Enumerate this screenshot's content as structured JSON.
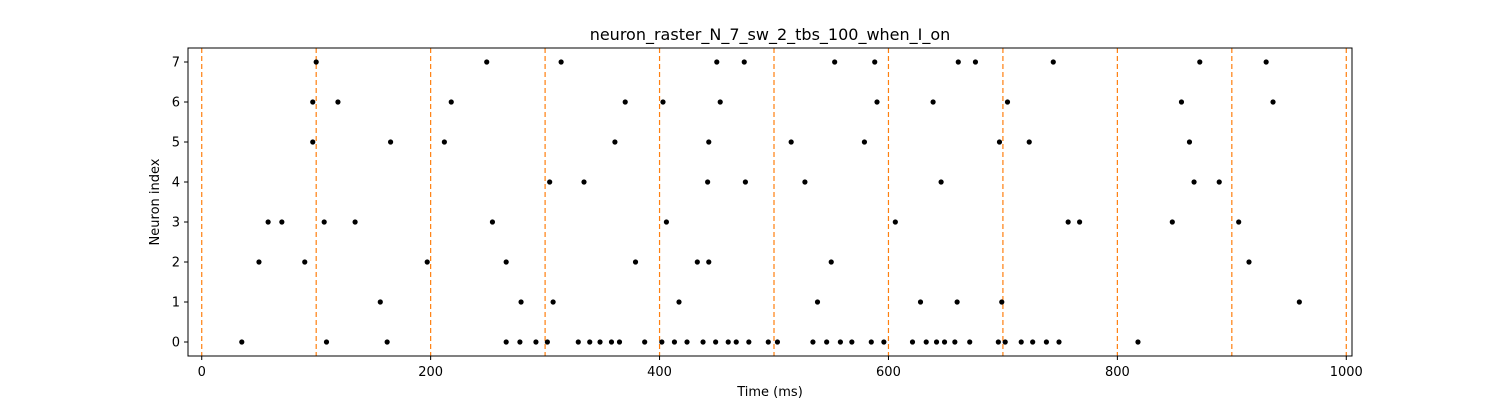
{
  "chart_data": {
    "type": "scatter",
    "title": "neuron_raster_N_7_sw_2_tbs_100_when_I_on",
    "xlabel": "Time (ms)",
    "ylabel": "Neuron index",
    "xlim": [
      -12,
      1005
    ],
    "ylim": [
      -0.35,
      7.35
    ],
    "xticks": [
      0,
      200,
      400,
      600,
      800,
      1000
    ],
    "yticks": [
      0,
      1,
      2,
      3,
      4,
      5,
      6,
      7
    ],
    "grid": false,
    "point_color": "#000000",
    "vline_color": "#ff7f0e",
    "vlines": [
      0,
      100,
      200,
      300,
      400,
      500,
      600,
      700,
      800,
      900,
      1000
    ],
    "spikes": [
      [
        35,
        0
      ],
      [
        50,
        2
      ],
      [
        58,
        3
      ],
      [
        70,
        3
      ],
      [
        90,
        2
      ],
      [
        97,
        5
      ],
      [
        97,
        6
      ],
      [
        100,
        7
      ],
      [
        107,
        3
      ],
      [
        109,
        0
      ],
      [
        119,
        6
      ],
      [
        134,
        3
      ],
      [
        156,
        1
      ],
      [
        162,
        0
      ],
      [
        165,
        5
      ],
      [
        197,
        2
      ],
      [
        212,
        5
      ],
      [
        218,
        6
      ],
      [
        249,
        7
      ],
      [
        254,
        3
      ],
      [
        266,
        2
      ],
      [
        266,
        0
      ],
      [
        278,
        0
      ],
      [
        279,
        1
      ],
      [
        292,
        0
      ],
      [
        302,
        0
      ],
      [
        304,
        4
      ],
      [
        307,
        1
      ],
      [
        314,
        7
      ],
      [
        329,
        0
      ],
      [
        334,
        4
      ],
      [
        339,
        0
      ],
      [
        348,
        0
      ],
      [
        358,
        0
      ],
      [
        361,
        5
      ],
      [
        365,
        0
      ],
      [
        370,
        6
      ],
      [
        379,
        2
      ],
      [
        387,
        0
      ],
      [
        402,
        0
      ],
      [
        403,
        6
      ],
      [
        406,
        3
      ],
      [
        413,
        0
      ],
      [
        417,
        1
      ],
      [
        424,
        0
      ],
      [
        433,
        2
      ],
      [
        438,
        0
      ],
      [
        442,
        4
      ],
      [
        443,
        5
      ],
      [
        443,
        2
      ],
      [
        449,
        0
      ],
      [
        450,
        7
      ],
      [
        453,
        6
      ],
      [
        460,
        0
      ],
      [
        467,
        0
      ],
      [
        474,
        7
      ],
      [
        475,
        4
      ],
      [
        478,
        0
      ],
      [
        495,
        0
      ],
      [
        503,
        0
      ],
      [
        515,
        5
      ],
      [
        527,
        4
      ],
      [
        534,
        0
      ],
      [
        538,
        1
      ],
      [
        546,
        0
      ],
      [
        550,
        2
      ],
      [
        553,
        7
      ],
      [
        558,
        0
      ],
      [
        568,
        0
      ],
      [
        579,
        5
      ],
      [
        585,
        0
      ],
      [
        588,
        7
      ],
      [
        590,
        6
      ],
      [
        596,
        0
      ],
      [
        606,
        3
      ],
      [
        621,
        0
      ],
      [
        628,
        1
      ],
      [
        633,
        0
      ],
      [
        639,
        6
      ],
      [
        642,
        0
      ],
      [
        646,
        4
      ],
      [
        649,
        0
      ],
      [
        658,
        0
      ],
      [
        660,
        1
      ],
      [
        661,
        7
      ],
      [
        671,
        0
      ],
      [
        676,
        7
      ],
      [
        696,
        0
      ],
      [
        697,
        5
      ],
      [
        699,
        1
      ],
      [
        702,
        0
      ],
      [
        704,
        6
      ],
      [
        716,
        0
      ],
      [
        723,
        5
      ],
      [
        726,
        0
      ],
      [
        738,
        0
      ],
      [
        744,
        7
      ],
      [
        749,
        0
      ],
      [
        757,
        3
      ],
      [
        767,
        3
      ],
      [
        818,
        0
      ],
      [
        848,
        3
      ],
      [
        856,
        6
      ],
      [
        863,
        5
      ],
      [
        867,
        4
      ],
      [
        872,
        7
      ],
      [
        889,
        4
      ],
      [
        906,
        3
      ],
      [
        915,
        2
      ],
      [
        930,
        7
      ],
      [
        936,
        6
      ],
      [
        959,
        1
      ]
    ]
  }
}
